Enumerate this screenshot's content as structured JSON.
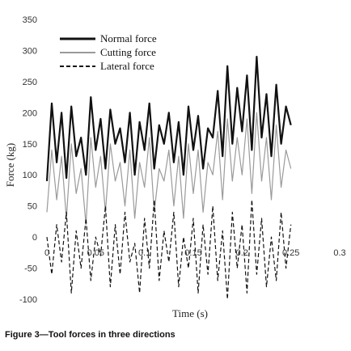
{
  "caption": "Figure 3—Tool forces in three directions",
  "chart_data": {
    "type": "line",
    "title": "",
    "xlabel": "Time (s)",
    "ylabel": "Force (kg)",
    "xlim": [
      0,
      0.3
    ],
    "ylim": [
      -100,
      350
    ],
    "xticks": [
      0,
      0.05,
      0.1,
      0.15,
      0.2,
      0.25,
      0.3
    ],
    "xtick_labels": [
      "0",
      "0.05",
      "0.1",
      "0.15",
      "0.2",
      "0.25",
      "0.3"
    ],
    "yticks": [
      -100,
      -50,
      0,
      50,
      100,
      150,
      200,
      250,
      300,
      350
    ],
    "ytick_labels": [
      "-100",
      "-50",
      "0",
      "50",
      "100",
      "150",
      "200",
      "250",
      "300",
      "350"
    ],
    "grid": false,
    "legend_position": "top-left",
    "x": [
      0,
      0.005,
      0.01,
      0.015,
      0.02,
      0.025,
      0.03,
      0.035,
      0.04,
      0.045,
      0.05,
      0.055,
      0.06,
      0.065,
      0.07,
      0.075,
      0.08,
      0.085,
      0.09,
      0.095,
      0.1,
      0.105,
      0.11,
      0.115,
      0.12,
      0.125,
      0.13,
      0.135,
      0.14,
      0.145,
      0.15,
      0.155,
      0.16,
      0.165,
      0.17,
      0.175,
      0.18,
      0.185,
      0.19,
      0.195,
      0.2,
      0.205,
      0.21,
      0.215,
      0.22,
      0.225,
      0.23,
      0.235,
      0.24,
      0.245,
      0.25
    ],
    "series": [
      {
        "name": "Normal force",
        "color": "#111111",
        "dash": "solid",
        "width": 2.2,
        "values": [
          90,
          215,
          120,
          200,
          95,
          210,
          130,
          160,
          100,
          225,
          140,
          190,
          110,
          205,
          150,
          175,
          120,
          200,
          100,
          185,
          140,
          215,
          110,
          180,
          150,
          200,
          120,
          185,
          100,
          210,
          140,
          195,
          110,
          175,
          160,
          235,
          130,
          275,
          150,
          240,
          170,
          260,
          140,
          290,
          160,
          230,
          130,
          245,
          150,
          210,
          180
        ]
      },
      {
        "name": "Cutting force",
        "color": "#9a9a9a",
        "dash": "solid",
        "width": 1.2,
        "values": [
          40,
          140,
          60,
          130,
          30,
          150,
          70,
          110,
          20,
          160,
          80,
          130,
          40,
          150,
          90,
          120,
          50,
          140,
          30,
          120,
          80,
          160,
          40,
          110,
          90,
          140,
          50,
          130,
          30,
          150,
          70,
          140,
          40,
          120,
          100,
          170,
          60,
          190,
          90,
          160,
          100,
          190,
          70,
          200,
          90,
          160,
          60,
          180,
          80,
          140,
          110
        ]
      },
      {
        "name": "Lateral force",
        "color": "#111111",
        "dash": "dashed",
        "width": 1.2,
        "values": [
          0,
          -60,
          20,
          -40,
          40,
          -90,
          10,
          -50,
          30,
          -70,
          0,
          -30,
          50,
          -80,
          20,
          -60,
          40,
          -40,
          -10,
          -90,
          30,
          -50,
          60,
          -70,
          10,
          -40,
          40,
          -80,
          0,
          -50,
          30,
          -90,
          20,
          -60,
          50,
          -70,
          10,
          -100,
          40,
          -50,
          20,
          -90,
          60,
          -60,
          30,
          -80,
          0,
          -70,
          40,
          -50,
          20
        ]
      }
    ]
  }
}
